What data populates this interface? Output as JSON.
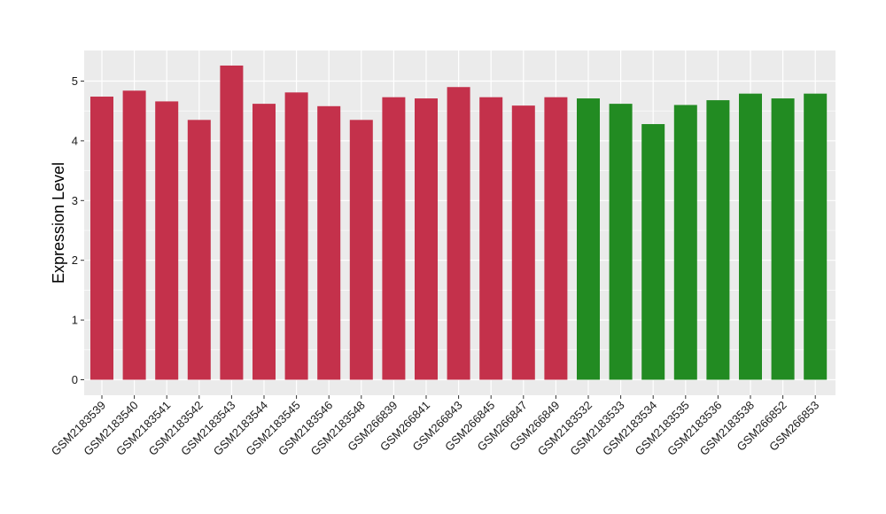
{
  "chart_data": {
    "type": "bar",
    "title": "",
    "xlabel": "",
    "ylabel": "Expression Level",
    "ylim": [
      0,
      5.5
    ],
    "yticks": [
      0,
      1,
      2,
      3,
      4,
      5
    ],
    "grid": true,
    "colors": {
      "group1": "#c4314b",
      "group2": "#228b22",
      "panel": "#ebebeb",
      "grid": "#ffffff"
    },
    "categories": [
      "GSM2183539",
      "GSM2183540",
      "GSM2183541",
      "GSM2183542",
      "GSM2183543",
      "GSM2183544",
      "GSM2183545",
      "GSM2183546",
      "GSM2183548",
      "GSM266839",
      "GSM266841",
      "GSM266843",
      "GSM266845",
      "GSM266847",
      "GSM266849",
      "GSM2183532",
      "GSM2183533",
      "GSM2183534",
      "GSM2183535",
      "GSM2183536",
      "GSM2183538",
      "GSM266852",
      "GSM266853"
    ],
    "values": [
      4.74,
      4.84,
      4.66,
      4.35,
      5.26,
      4.62,
      4.81,
      4.58,
      4.35,
      4.73,
      4.71,
      4.9,
      4.73,
      4.59,
      4.73,
      4.71,
      4.62,
      4.28,
      4.6,
      4.68,
      4.79,
      4.71,
      4.79
    ],
    "groups": [
      "group1",
      "group1",
      "group1",
      "group1",
      "group1",
      "group1",
      "group1",
      "group1",
      "group1",
      "group1",
      "group1",
      "group1",
      "group1",
      "group1",
      "group1",
      "group2",
      "group2",
      "group2",
      "group2",
      "group2",
      "group2",
      "group2",
      "group2"
    ]
  }
}
